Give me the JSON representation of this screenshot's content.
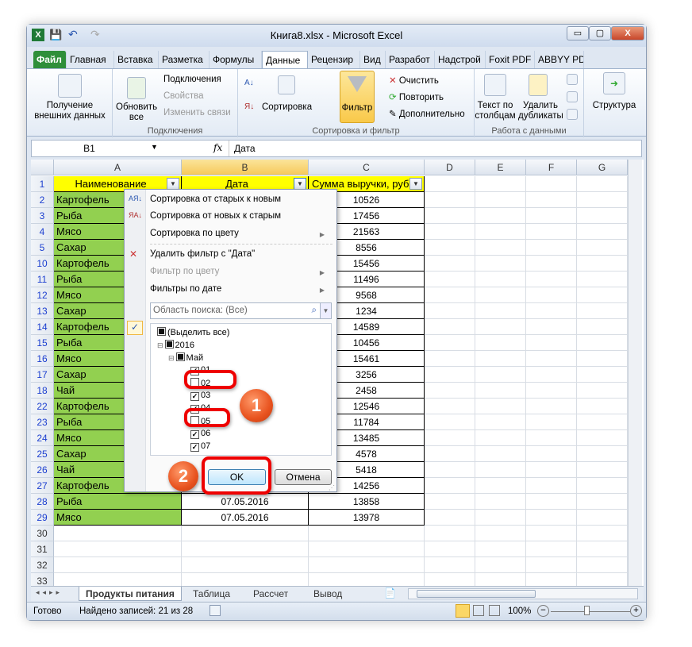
{
  "window": {
    "title": "Книга8.xlsx  -  Microsoft Excel",
    "min": "▭",
    "max": "▢",
    "close": "X"
  },
  "ribbon_tabs": [
    "Файл",
    "Главная",
    "Вставка",
    "Разметка",
    "Формулы",
    "Данные",
    "Рецензир",
    "Вид",
    "Разработ",
    "Надстрой",
    "Foxit PDF",
    "ABBYY PD"
  ],
  "active_tab": "Данные",
  "ribbon": {
    "get_external": "Получение внешних данных",
    "refresh_all": "Обновить все",
    "connections": "Подключения",
    "properties": "Свойства",
    "edit_links": "Изменить связи",
    "group_connections": "Подключения",
    "sort": "Сортировка",
    "filter": "Фильтр",
    "clear": "Очистить",
    "reapply": "Повторить",
    "advanced": "Дополнительно",
    "group_sort_filter": "Сортировка и фильтр",
    "text_to_columns": "Текст по столбцам",
    "remove_duplicates": "Удалить дубликаты",
    "group_data_tools": "Работа с данными",
    "outline": "Структура"
  },
  "formula_bar": {
    "name_box": "B1",
    "fx": "fx",
    "value": "Дата"
  },
  "columns": [
    "A",
    "B",
    "C",
    "D",
    "E",
    "F",
    "G"
  ],
  "headers": {
    "a": "Наименование",
    "b": "Дата",
    "c": "Сумма выручки, руб"
  },
  "rows": [
    {
      "n": "2",
      "a": "Картофель",
      "c": "10526"
    },
    {
      "n": "3",
      "a": "Рыба",
      "c": "17456"
    },
    {
      "n": "4",
      "a": "Мясо",
      "c": "21563"
    },
    {
      "n": "5",
      "a": "Сахар",
      "c": "8556"
    },
    {
      "n": "10",
      "a": "Картофель",
      "c": "15456"
    },
    {
      "n": "11",
      "a": "Рыба",
      "c": "11496"
    },
    {
      "n": "12",
      "a": "Мясо",
      "c": "9568"
    },
    {
      "n": "13",
      "a": "Сахар",
      "c": "1234"
    },
    {
      "n": "14",
      "a": "Картофель",
      "c": "14589"
    },
    {
      "n": "15",
      "a": "Рыба",
      "c": "10456"
    },
    {
      "n": "16",
      "a": "Мясо",
      "c": "15461"
    },
    {
      "n": "17",
      "a": "Сахар",
      "c": "3256"
    },
    {
      "n": "18",
      "a": "Чай",
      "c": "2458"
    },
    {
      "n": "22",
      "a": "Картофель",
      "c": "12546"
    },
    {
      "n": "23",
      "a": "Рыба",
      "c": "11784"
    },
    {
      "n": "24",
      "a": "Мясо",
      "c": "13485"
    },
    {
      "n": "25",
      "a": "Сахар",
      "c": "4578"
    },
    {
      "n": "26",
      "a": "Чай",
      "c": "5418"
    },
    {
      "n": "27",
      "a": "Картофель",
      "c": "14256"
    },
    {
      "n": "28",
      "a": "Рыба",
      "b": "07.05.2016",
      "c": "13858"
    },
    {
      "n": "29",
      "a": "Мясо",
      "b": "07.05.2016",
      "c": "13978"
    }
  ],
  "empty_rows": [
    "30",
    "31",
    "32",
    "33"
  ],
  "filter_menu": {
    "sort_asc": "Сортировка от старых к новым",
    "sort_desc": "Сортировка от новых к старым",
    "sort_color": "Сортировка по цвету",
    "clear_filter": "Удалить фильтр с \"Дата\"",
    "filter_color": "Фильтр по цвету",
    "date_filters": "Фильтры по дате",
    "search_placeholder": "Область поиска: (Все)",
    "tree": [
      {
        "label": "(Выделить все)",
        "state": "partial",
        "level": 0
      },
      {
        "label": "2016",
        "state": "partial",
        "level": 0
      },
      {
        "label": "Май",
        "state": "partial",
        "level": 1
      },
      {
        "label": "01",
        "state": "checked",
        "level": 2
      },
      {
        "label": "02",
        "state": "unchecked",
        "level": 2
      },
      {
        "label": "03",
        "state": "checked",
        "level": 2
      },
      {
        "label": "04",
        "state": "checked",
        "level": 2
      },
      {
        "label": "05",
        "state": "unchecked",
        "level": 2
      },
      {
        "label": "06",
        "state": "checked",
        "level": 2
      },
      {
        "label": "07",
        "state": "checked",
        "level": 2
      }
    ],
    "ok": "OK",
    "cancel": "Отмена"
  },
  "annotations": {
    "step1": "1",
    "step2": "2",
    "color": "#e00000"
  },
  "sheet_tabs": [
    "Продукты питания",
    "Таблица",
    "Рассчет",
    "Вывод"
  ],
  "active_sheet": "Продукты питания",
  "status": {
    "ready": "Готово",
    "found": "Найдено записей: 21 из 28",
    "zoom": "100%"
  },
  "colors": {
    "header_fill": "#ffff00",
    "name_fill": "#92d050",
    "filter_highlight": "#fbd766"
  }
}
